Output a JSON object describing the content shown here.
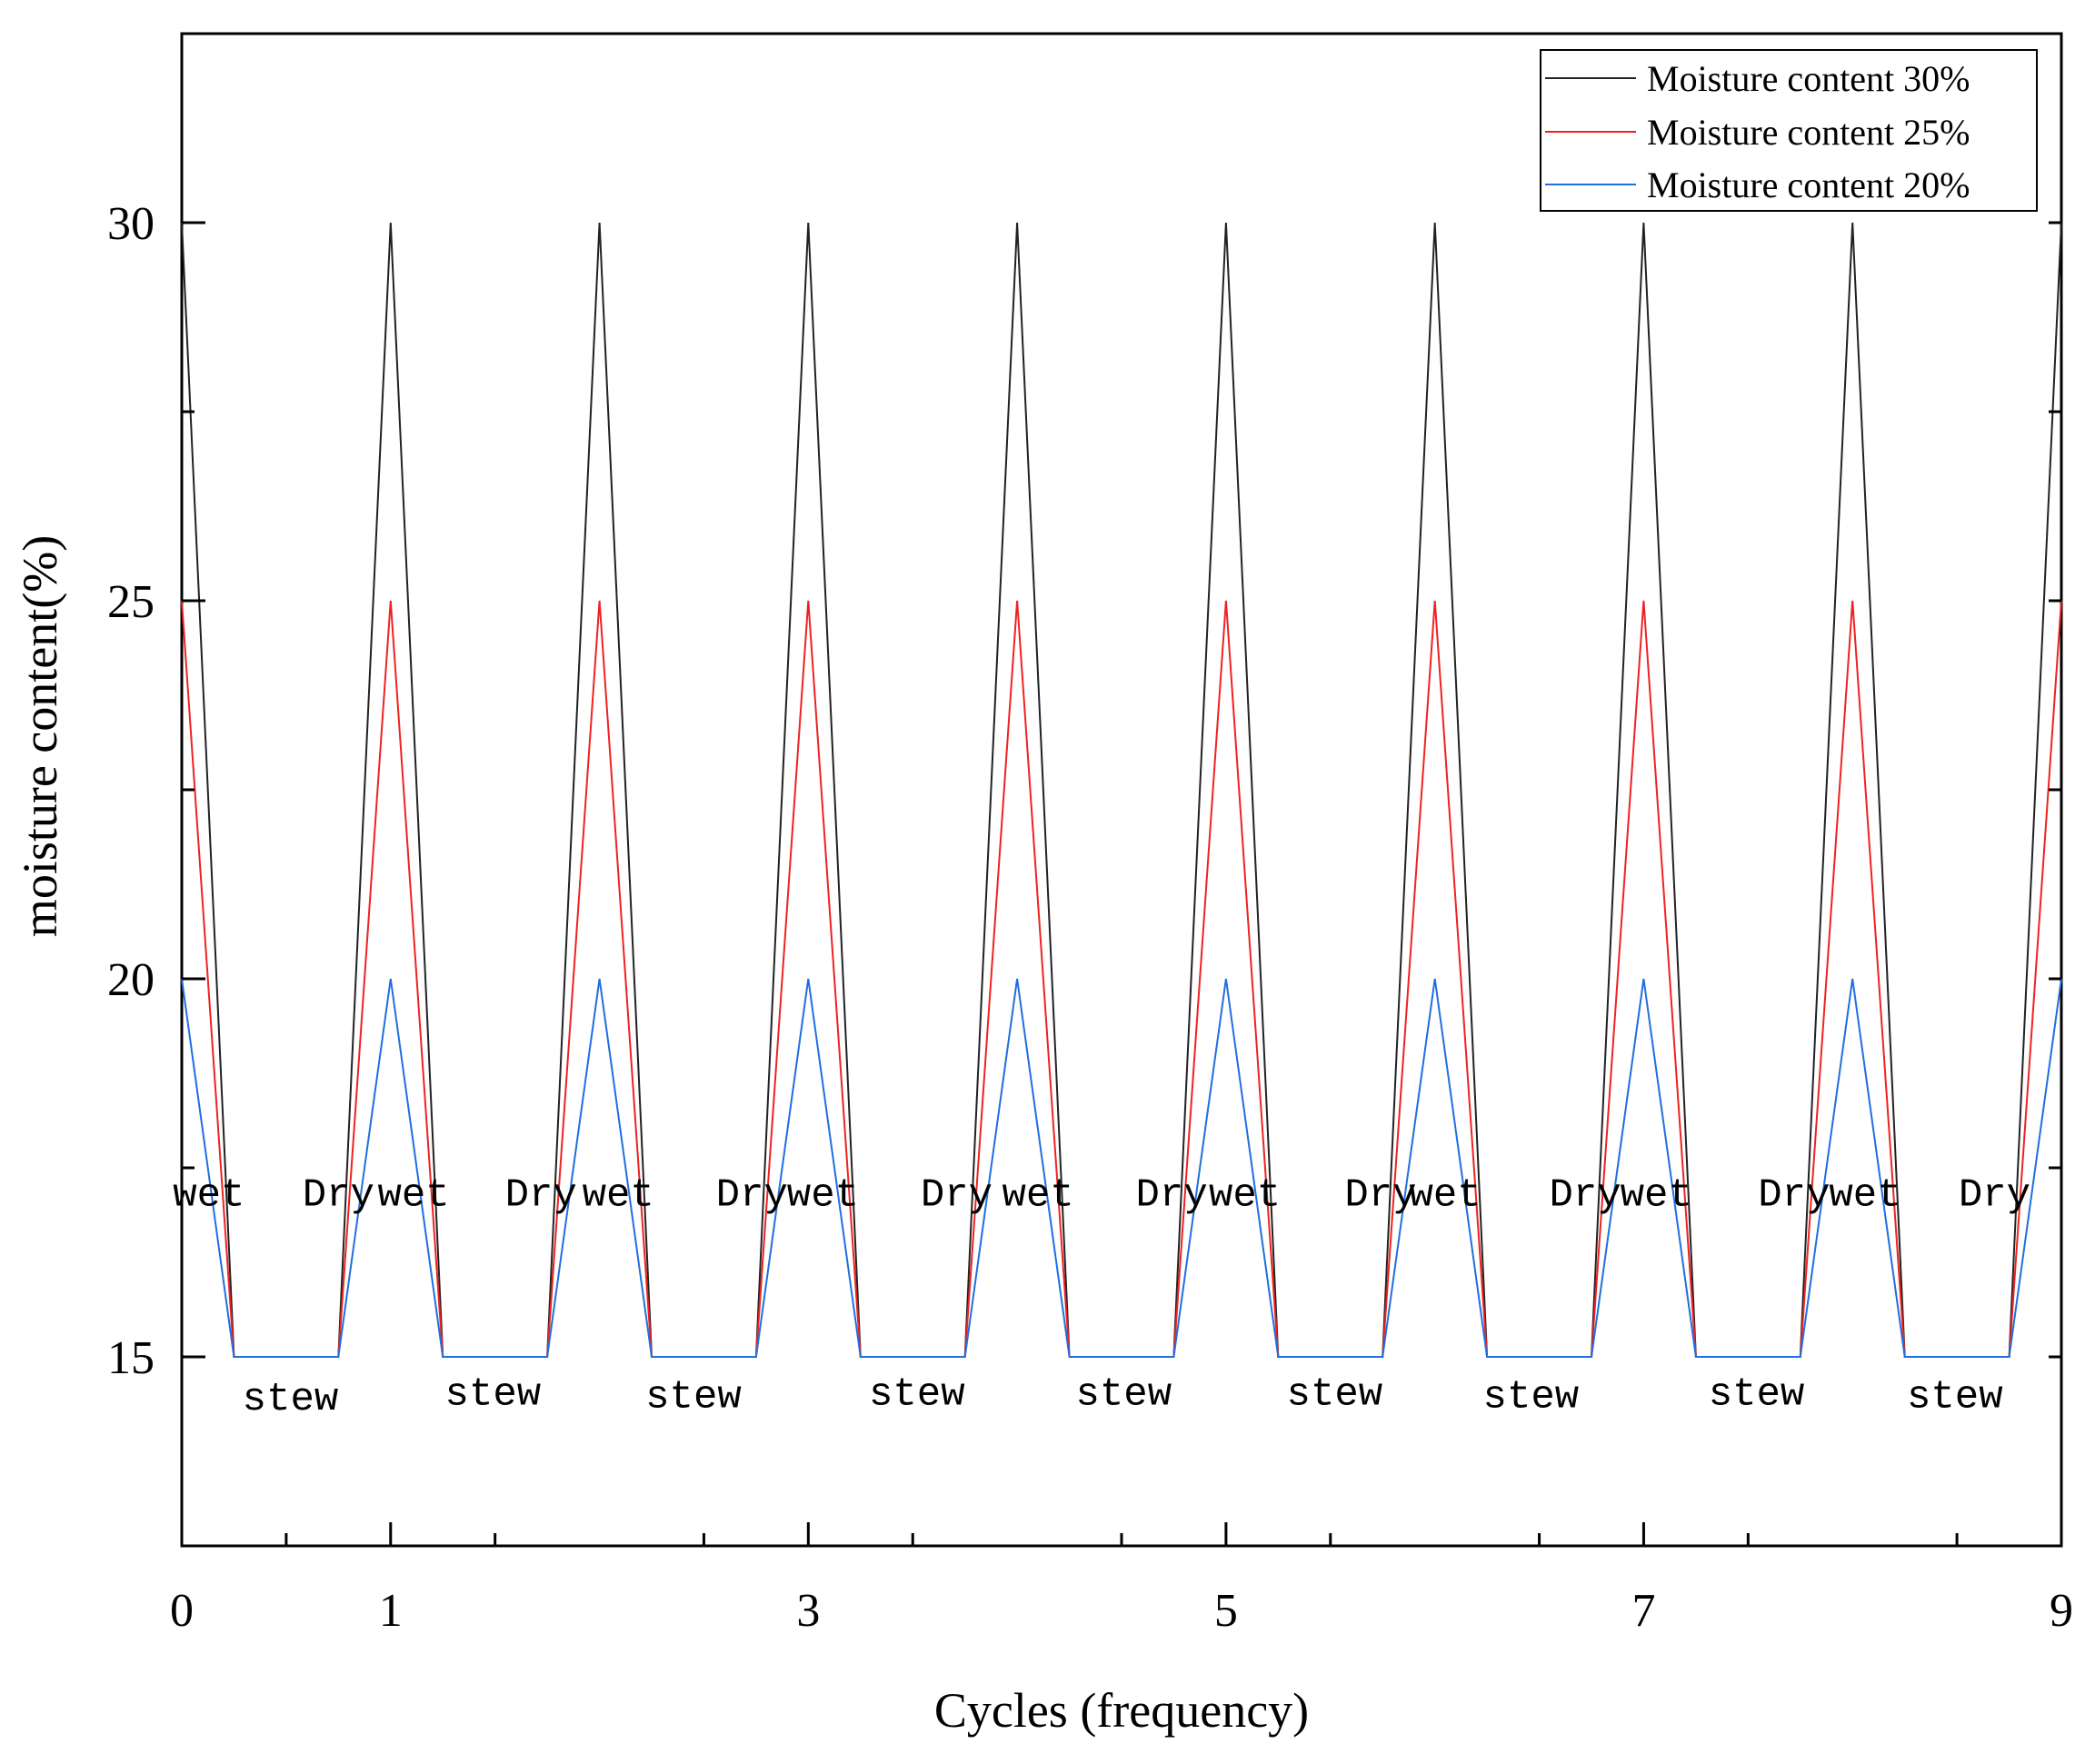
{
  "chart_data": {
    "type": "line",
    "title": "",
    "xlabel": "Cycles (frequency)",
    "ylabel": "moisture content(%)",
    "xlim": [
      0,
      9
    ],
    "ylim": [
      12.5,
      32.5
    ],
    "x_ticks": [
      0,
      1,
      3,
      5,
      7,
      9
    ],
    "y_ticks": [
      15,
      20,
      25,
      30
    ],
    "grid": false,
    "legend_position": "top-right",
    "series": [
      {
        "name": "Moisture content 30%",
        "color": "#222222",
        "x": [
          0,
          0.25,
          0.75,
          1,
          1.25,
          1.75,
          2,
          2.25,
          2.75,
          3,
          3.25,
          3.75,
          4,
          4.25,
          4.75,
          5,
          5.25,
          5.75,
          6,
          6.25,
          6.75,
          7,
          7.25,
          7.75,
          8,
          8.25,
          8.75,
          9
        ],
        "y": [
          30,
          15,
          15,
          30,
          15,
          15,
          30,
          15,
          15,
          30,
          15,
          15,
          30,
          15,
          15,
          30,
          15,
          15,
          30,
          15,
          15,
          30,
          15,
          15,
          30,
          15,
          15,
          30
        ]
      },
      {
        "name": "Moisture content 25%",
        "color": "#ee2222",
        "x": [
          0,
          0.25,
          0.75,
          1,
          1.25,
          1.75,
          2,
          2.25,
          2.75,
          3,
          3.25,
          3.75,
          4,
          4.25,
          4.75,
          5,
          5.25,
          5.75,
          6,
          6.25,
          6.75,
          7,
          7.25,
          7.75,
          8,
          8.25,
          8.75,
          9
        ],
        "y": [
          25,
          15,
          15,
          25,
          15,
          15,
          25,
          15,
          15,
          25,
          15,
          15,
          25,
          15,
          15,
          25,
          15,
          15,
          25,
          15,
          15,
          25,
          15,
          15,
          25,
          15,
          15,
          25
        ]
      },
      {
        "name": "Moisture content 20%",
        "color": "#1f6fe0",
        "x": [
          0,
          0.25,
          0.75,
          1,
          1.25,
          1.75,
          2,
          2.25,
          2.75,
          3,
          3.25,
          3.75,
          4,
          4.25,
          4.75,
          5,
          5.25,
          5.75,
          6,
          6.25,
          6.75,
          7,
          7.25,
          7.75,
          8,
          8.25,
          8.75,
          9
        ],
        "y": [
          20,
          15,
          15,
          20,
          15,
          15,
          20,
          15,
          15,
          20,
          15,
          15,
          20,
          15,
          15,
          20,
          15,
          15,
          20,
          15,
          15,
          20,
          15,
          15,
          20,
          15,
          15,
          20
        ]
      }
    ],
    "annotations": [
      {
        "text": "wet",
        "x": 0.13,
        "y": 17.0
      },
      {
        "text": "Dry",
        "x": 0.75,
        "y": 17.0
      },
      {
        "text": "wet",
        "x": 1.11,
        "y": 17.0
      },
      {
        "text": "Dry",
        "x": 1.72,
        "y": 17.0
      },
      {
        "text": "wet",
        "x": 2.09,
        "y": 17.0
      },
      {
        "text": "Dry",
        "x": 2.73,
        "y": 17.0
      },
      {
        "text": "wet",
        "x": 3.07,
        "y": 17.0
      },
      {
        "text": "Dry",
        "x": 3.71,
        "y": 17.0
      },
      {
        "text": "wet",
        "x": 4.1,
        "y": 17.0
      },
      {
        "text": "Dry",
        "x": 4.74,
        "y": 17.0
      },
      {
        "text": "wet",
        "x": 5.09,
        "y": 17.0
      },
      {
        "text": "Dry",
        "x": 5.74,
        "y": 17.0
      },
      {
        "text": "wet",
        "x": 6.05,
        "y": 17.0
      },
      {
        "text": "Dry",
        "x": 6.72,
        "y": 17.0
      },
      {
        "text": "wet",
        "x": 7.06,
        "y": 17.0
      },
      {
        "text": "Dry",
        "x": 7.72,
        "y": 17.0
      },
      {
        "text": "wet",
        "x": 8.06,
        "y": 17.0
      },
      {
        "text": "Dry",
        "x": 8.68,
        "y": 17.0
      },
      {
        "text": "stew",
        "x": 0.52,
        "y": 14.3
      },
      {
        "text": "stew",
        "x": 1.49,
        "y": 14.37
      },
      {
        "text": "stew",
        "x": 2.45,
        "y": 14.33
      },
      {
        "text": "stew",
        "x": 3.52,
        "y": 14.37
      },
      {
        "text": "stew",
        "x": 4.51,
        "y": 14.37
      },
      {
        "text": "stew",
        "x": 5.52,
        "y": 14.37
      },
      {
        "text": "stew",
        "x": 6.46,
        "y": 14.33
      },
      {
        "text": "stew",
        "x": 7.54,
        "y": 14.37
      },
      {
        "text": "stew",
        "x": 8.49,
        "y": 14.33
      }
    ]
  }
}
